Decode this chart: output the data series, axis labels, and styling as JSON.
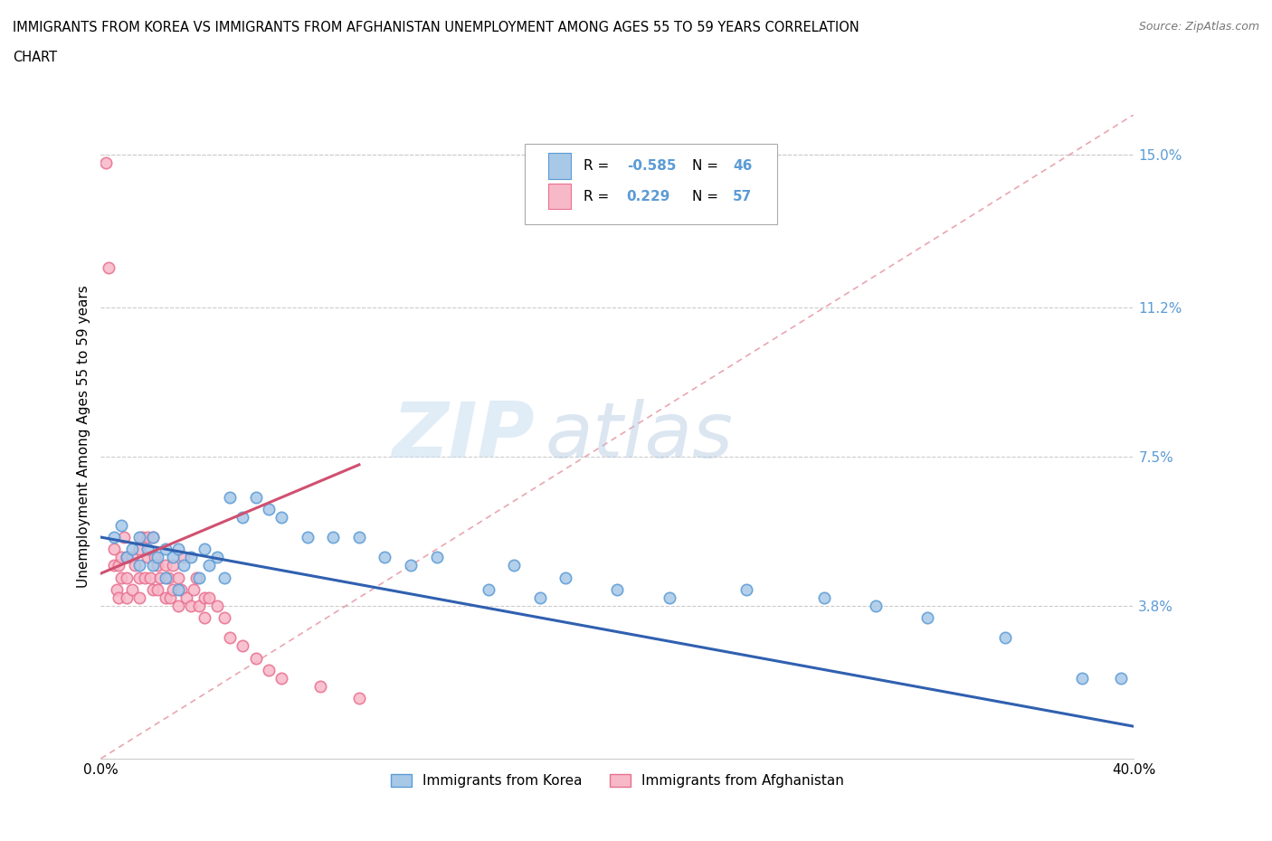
{
  "title_line1": "IMMIGRANTS FROM KOREA VS IMMIGRANTS FROM AFGHANISTAN UNEMPLOYMENT AMONG AGES 55 TO 59 YEARS CORRELATION",
  "title_line2": "CHART",
  "source": "Source: ZipAtlas.com",
  "ylabel": "Unemployment Among Ages 55 to 59 years",
  "xlim": [
    0.0,
    0.4
  ],
  "ylim": [
    0.0,
    0.16
  ],
  "x_ticks": [
    0.0,
    0.1,
    0.2,
    0.3,
    0.4
  ],
  "x_tick_labels": [
    "0.0%",
    "",
    "",
    "",
    "40.0%"
  ],
  "y_tick_labels_right": [
    "",
    "3.8%",
    "7.5%",
    "11.2%",
    "15.0%"
  ],
  "y_tick_values_right": [
    0.0,
    0.038,
    0.075,
    0.112,
    0.15
  ],
  "gridline_y": [
    0.038,
    0.075,
    0.112,
    0.15
  ],
  "korea_fill": "#a8c8e8",
  "korea_edge": "#5b9bd5",
  "afghanistan_fill": "#f7b8c8",
  "afghanistan_edge": "#e87090",
  "afghanistan_line_color": "#d05070",
  "korea_line_color": "#3060b0",
  "diagonal_color": "#e0a0b0",
  "R_korea": -0.585,
  "N_korea": 46,
  "R_afghanistan": 0.229,
  "N_afghanistan": 57,
  "legend_label_korea": "Immigrants from Korea",
  "legend_label_afghanistan": "Immigrants from Afghanistan",
  "watermark_zip": "ZIP",
  "watermark_atlas": "atlas",
  "korea_scatter_x": [
    0.005,
    0.008,
    0.01,
    0.012,
    0.015,
    0.015,
    0.018,
    0.02,
    0.02,
    0.022,
    0.025,
    0.025,
    0.028,
    0.03,
    0.03,
    0.032,
    0.035,
    0.038,
    0.04,
    0.042,
    0.045,
    0.048,
    0.05,
    0.055,
    0.06,
    0.065,
    0.07,
    0.08,
    0.09,
    0.1,
    0.11,
    0.12,
    0.13,
    0.15,
    0.16,
    0.17,
    0.18,
    0.2,
    0.22,
    0.25,
    0.28,
    0.3,
    0.32,
    0.35,
    0.38,
    0.395
  ],
  "korea_scatter_y": [
    0.055,
    0.058,
    0.05,
    0.052,
    0.055,
    0.048,
    0.052,
    0.055,
    0.048,
    0.05,
    0.052,
    0.045,
    0.05,
    0.052,
    0.042,
    0.048,
    0.05,
    0.045,
    0.052,
    0.048,
    0.05,
    0.045,
    0.065,
    0.06,
    0.065,
    0.062,
    0.06,
    0.055,
    0.055,
    0.055,
    0.05,
    0.048,
    0.05,
    0.042,
    0.048,
    0.04,
    0.045,
    0.042,
    0.04,
    0.042,
    0.04,
    0.038,
    0.035,
    0.03,
    0.02,
    0.02
  ],
  "afghanistan_scatter_x": [
    0.002,
    0.003,
    0.005,
    0.005,
    0.006,
    0.007,
    0.007,
    0.008,
    0.008,
    0.009,
    0.01,
    0.01,
    0.01,
    0.012,
    0.012,
    0.013,
    0.015,
    0.015,
    0.015,
    0.016,
    0.017,
    0.018,
    0.018,
    0.019,
    0.02,
    0.02,
    0.021,
    0.022,
    0.022,
    0.023,
    0.025,
    0.025,
    0.026,
    0.027,
    0.028,
    0.028,
    0.03,
    0.03,
    0.031,
    0.032,
    0.033,
    0.035,
    0.036,
    0.037,
    0.038,
    0.04,
    0.04,
    0.042,
    0.045,
    0.048,
    0.05,
    0.055,
    0.06,
    0.065,
    0.07,
    0.085,
    0.1
  ],
  "afghanistan_scatter_y": [
    0.148,
    0.122,
    0.048,
    0.052,
    0.042,
    0.04,
    0.048,
    0.05,
    0.045,
    0.055,
    0.05,
    0.04,
    0.045,
    0.05,
    0.042,
    0.048,
    0.052,
    0.045,
    0.04,
    0.055,
    0.045,
    0.055,
    0.05,
    0.045,
    0.055,
    0.042,
    0.05,
    0.048,
    0.042,
    0.045,
    0.048,
    0.04,
    0.045,
    0.04,
    0.042,
    0.048,
    0.045,
    0.038,
    0.042,
    0.05,
    0.04,
    0.038,
    0.042,
    0.045,
    0.038,
    0.04,
    0.035,
    0.04,
    0.038,
    0.035,
    0.03,
    0.028,
    0.025,
    0.022,
    0.02,
    0.018,
    0.015
  ],
  "korea_line_x0": 0.0,
  "korea_line_y0": 0.055,
  "korea_line_x1": 0.4,
  "korea_line_y1": 0.008,
  "afghan_line_x0": 0.0,
  "afghan_line_y0": 0.046,
  "afghan_line_x1": 0.1,
  "afghan_line_y1": 0.073
}
